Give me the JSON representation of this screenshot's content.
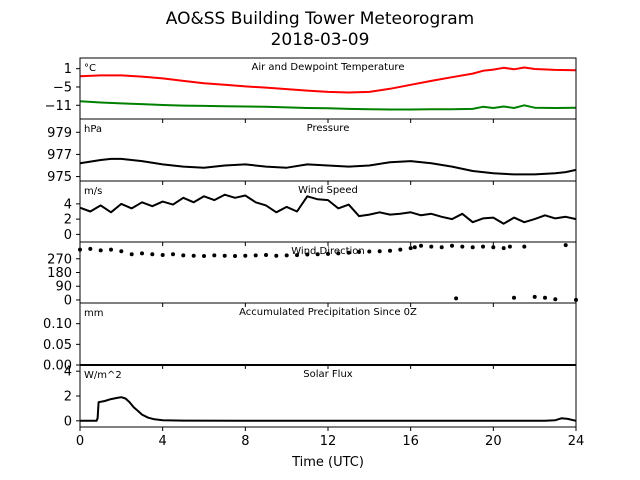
{
  "figure": {
    "title": "AO&SS Building Tower Meteorogram",
    "subtitle": "2018-03-09",
    "xlabel": "Time (UTC)",
    "xticks": [
      0,
      4,
      8,
      12,
      16,
      20,
      24
    ],
    "xlim": [
      0,
      24
    ]
  },
  "chart_data": [
    {
      "type": "line",
      "title": "Air and Dewpoint Temperature",
      "unit": "°C",
      "ylim": [
        -15.5,
        4.5
      ],
      "yticks": [
        1,
        -5,
        -11
      ],
      "series": [
        {
          "color": "#ff0000",
          "x": [
            0,
            1,
            2,
            3,
            4,
            5,
            6,
            7,
            8,
            9,
            10,
            11,
            12,
            13,
            14,
            15,
            16,
            17,
            18,
            19,
            19.5,
            20,
            20.5,
            21,
            21.5,
            22,
            23,
            24
          ],
          "y": [
            -1.5,
            -1.2,
            -1.2,
            -1.6,
            -2.2,
            -3.0,
            -3.8,
            -4.3,
            -4.8,
            -5.2,
            -5.7,
            -6.2,
            -6.6,
            -6.8,
            -6.6,
            -5.6,
            -4.3,
            -3.0,
            -1.8,
            -0.6,
            0.3,
            0.7,
            1.3,
            0.8,
            1.4,
            0.9,
            0.6,
            0.5
          ]
        },
        {
          "color": "#008000",
          "x": [
            0,
            1,
            2,
            3,
            4,
            5,
            6,
            7,
            8,
            9,
            10,
            11,
            12,
            13,
            14,
            15,
            16,
            17,
            18,
            19,
            19.5,
            20,
            20.5,
            21,
            21.5,
            22,
            23,
            24
          ],
          "y": [
            -9.7,
            -10.1,
            -10.4,
            -10.6,
            -10.9,
            -11.1,
            -11.2,
            -11.3,
            -11.4,
            -11.5,
            -11.7,
            -11.9,
            -12.0,
            -12.2,
            -12.3,
            -12.4,
            -12.4,
            -12.3,
            -12.3,
            -12.2,
            -11.5,
            -11.9,
            -11.4,
            -11.9,
            -11.0,
            -11.8,
            -11.9,
            -11.8
          ]
        }
      ]
    },
    {
      "type": "line",
      "title": "Pressure",
      "unit": "hPa",
      "ylim": [
        974.6,
        980.2
      ],
      "yticks": [
        979,
        977,
        975
      ],
      "series": [
        {
          "color": "#000000",
          "x": [
            0,
            1,
            1.5,
            2,
            3,
            4,
            5,
            6,
            7,
            8,
            9,
            10,
            11,
            12,
            13,
            14,
            15,
            16,
            17,
            18,
            19,
            20,
            21,
            22,
            23,
            23.5,
            24
          ],
          "y": [
            976.2,
            976.5,
            976.6,
            976.6,
            976.4,
            976.1,
            975.9,
            975.8,
            976.0,
            976.1,
            975.9,
            975.8,
            976.1,
            976.0,
            975.9,
            976.0,
            976.3,
            976.4,
            976.2,
            975.9,
            975.5,
            975.3,
            975.2,
            975.2,
            975.3,
            975.4,
            975.6
          ]
        }
      ]
    },
    {
      "type": "line",
      "title": "Wind Speed",
      "unit": "m/s",
      "ylim": [
        -1,
        7
      ],
      "yticks": [
        4,
        2,
        0
      ],
      "series": [
        {
          "color": "#000000",
          "x": [
            0,
            0.5,
            1,
            1.5,
            2,
            2.5,
            3,
            3.5,
            4,
            4.5,
            5,
            5.5,
            6,
            6.5,
            7,
            7.5,
            8,
            8.5,
            9,
            9.5,
            10,
            10.5,
            11,
            11.5,
            12,
            12.5,
            13,
            13.5,
            14,
            14.5,
            15,
            15.5,
            16,
            16.5,
            17,
            17.5,
            18,
            18.5,
            19,
            19.5,
            20,
            20.5,
            21,
            21.5,
            22,
            22.5,
            23,
            23.5,
            24
          ],
          "y": [
            3.5,
            3.0,
            3.8,
            2.9,
            4.0,
            3.4,
            4.2,
            3.7,
            4.3,
            3.9,
            4.8,
            4.2,
            5.0,
            4.5,
            5.2,
            4.8,
            5.1,
            4.2,
            3.8,
            2.9,
            3.6,
            3.0,
            5.0,
            4.6,
            4.5,
            3.4,
            3.9,
            2.4,
            2.6,
            2.9,
            2.6,
            2.7,
            2.9,
            2.5,
            2.7,
            2.3,
            2.0,
            2.7,
            1.6,
            2.1,
            2.2,
            1.4,
            2.2,
            1.6,
            2.0,
            2.5,
            2.1,
            2.3,
            2.0
          ]
        }
      ]
    },
    {
      "type": "scatter",
      "title": "Wind Direction",
      "unit": "",
      "ylim": [
        -20,
        380
      ],
      "yticks": [
        270,
        180,
        90,
        0
      ],
      "series": [
        {
          "color": "#000000",
          "x": [
            0,
            0.5,
            1,
            1.5,
            2,
            2.5,
            3,
            3.5,
            4,
            4.5,
            5,
            5.5,
            6,
            6.5,
            7,
            7.5,
            8,
            8.5,
            9,
            9.5,
            10,
            10.5,
            11,
            11.5,
            12,
            12.5,
            13,
            13.5,
            14,
            14.5,
            15,
            15.5,
            16,
            16.2,
            16.5,
            17,
            17.5,
            18,
            18.2,
            18.5,
            19,
            19.5,
            20,
            20.5,
            20.8,
            21,
            21.5,
            22,
            22.5,
            23,
            23.5,
            24
          ],
          "y": [
            330,
            335,
            325,
            330,
            320,
            300,
            305,
            300,
            295,
            300,
            292,
            290,
            288,
            292,
            290,
            288,
            290,
            292,
            295,
            290,
            292,
            294,
            298,
            300,
            302,
            305,
            310,
            315,
            318,
            320,
            322,
            330,
            340,
            345,
            355,
            350,
            345,
            355,
            10,
            350,
            345,
            350,
            345,
            340,
            350,
            15,
            350,
            20,
            15,
            5,
            360,
            0
          ]
        }
      ]
    },
    {
      "type": "line",
      "title": "Accumulated Precipitation Since 0Z",
      "unit": "mm",
      "ylim": [
        0,
        0.15
      ],
      "yticks": [
        0.1,
        0.05,
        0.0
      ],
      "series": [
        {
          "color": "#000000",
          "x": [
            0,
            24
          ],
          "y": [
            0,
            0
          ]
        }
      ]
    },
    {
      "type": "line",
      "title": "Solar Flux",
      "unit": "W/m^2",
      "ylim": [
        -0.5,
        4.5
      ],
      "yticks": [
        4,
        2,
        0
      ],
      "series": [
        {
          "color": "#000000",
          "x": [
            0,
            0.8,
            0.85,
            0.9,
            1.2,
            1.5,
            1.8,
            2.0,
            2.2,
            2.4,
            2.6,
            2.8,
            3.0,
            3.3,
            3.6,
            4.0,
            5,
            8,
            12,
            16,
            20,
            22.5,
            23,
            23.3,
            23.6,
            24
          ],
          "y": [
            0,
            0,
            0.2,
            1.5,
            1.6,
            1.75,
            1.85,
            1.9,
            1.8,
            1.5,
            1.1,
            0.8,
            0.5,
            0.25,
            0.12,
            0.05,
            0.02,
            0,
            0,
            0,
            0,
            0,
            0.05,
            0.2,
            0.15,
            0
          ]
        }
      ]
    }
  ]
}
